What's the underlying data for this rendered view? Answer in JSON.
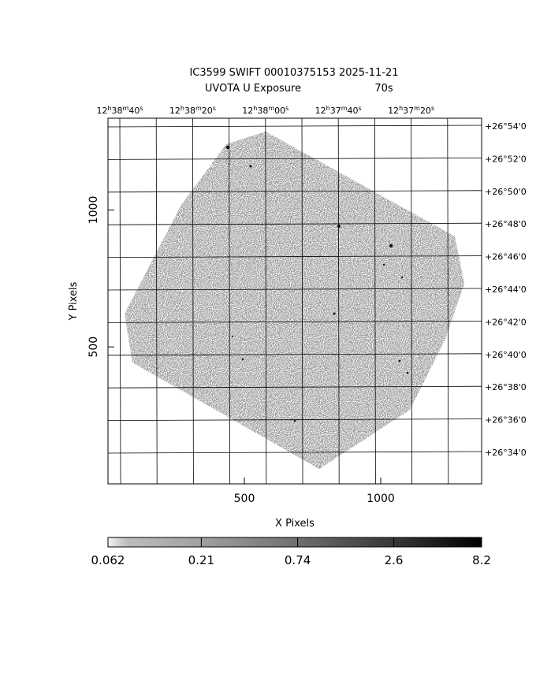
{
  "chart_data": {
    "type": "image",
    "title": "IC3599 SWIFT 00010375153 2025-11-21",
    "subtitle": "UVOTA U Exposure",
    "exposure": "70s",
    "xlabel": "X Pixels",
    "ylabel": "Y Pixels",
    "xlim": [
      0,
      1370
    ],
    "ylim": [
      0,
      1335
    ],
    "xticks": [
      500,
      1000
    ],
    "yticks": [
      500,
      1000
    ],
    "ra_labels": [
      "12h38m40s",
      "12h38m20s",
      "12h38m00s",
      "12h37m40s",
      "12h37m20s"
    ],
    "dec_labels": [
      "+26°54'0",
      "+26°52'0",
      "+26°50'0",
      "+26°48'0",
      "+26°46'0",
      "+26°44'0",
      "+26°42'0",
      "+26°40'0",
      "+26°38'0",
      "+26°36'0",
      "+26°34'0"
    ],
    "colorbar": {
      "scale": "log",
      "lim": [
        0.062,
        8.2
      ],
      "ticks": [
        0.062,
        0.21,
        0.74,
        2.6,
        8.2
      ]
    }
  }
}
